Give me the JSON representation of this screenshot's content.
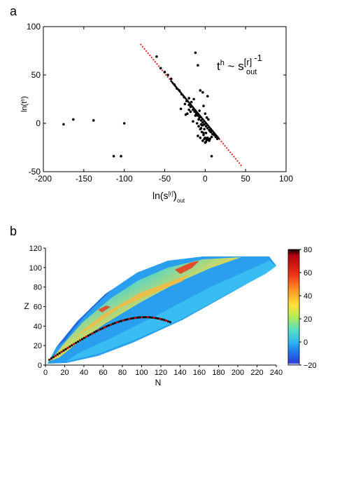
{
  "chart_data": [
    {
      "panel_label": "a",
      "type": "scatter",
      "xlabel": "ln(s",
      "xlabel_sup": "[r]",
      "xlabel_sub": "out",
      "xlabel_close": ")",
      "ylabel": "ln(t",
      "ylabel_sup": "h",
      "ylabel_close": ")",
      "xlim": [
        -200,
        100
      ],
      "ylim": [
        -50,
        100
      ],
      "xticks": [
        -200,
        -150,
        -100,
        -50,
        0,
        50,
        100
      ],
      "yticks": [
        -50,
        0,
        50,
        100
      ],
      "annotation": {
        "t": "t",
        "t_sup": "h",
        "tilde": " ~ s",
        "s_sup": "[r]",
        "s_sub": "out",
        "exp": "-1"
      },
      "fit_line": {
        "x": [
          -80,
          45
        ],
        "y": [
          82,
          -44
        ]
      },
      "series": [
        {
          "x": [
            -175,
            -163,
            -138,
            -100,
            -113,
            -104,
            -60,
            -55,
            -50,
            -46,
            -42,
            -38,
            -35,
            -32,
            -29,
            -26,
            -23,
            -20,
            -18,
            -15,
            -13,
            -11,
            -9,
            -7,
            -5,
            -3,
            -1,
            1,
            3,
            5,
            7,
            9,
            11,
            13,
            15,
            -12,
            -9,
            -6,
            -20,
            -17,
            -3,
            -2,
            0,
            2,
            4,
            6,
            8,
            -4,
            -1,
            1,
            3,
            5,
            -10,
            -8,
            -6,
            -4,
            -2,
            0,
            2,
            4,
            6,
            -15,
            -5,
            -25,
            -30,
            -22,
            -12,
            -8,
            -5,
            0,
            3,
            -14,
            -7,
            -2,
            -9,
            -6,
            -3,
            1,
            -1,
            0,
            2,
            -3,
            -20,
            -18,
            -24,
            5,
            8,
            3
          ],
          "y": [
            -1,
            4,
            3,
            0,
            -34,
            -34,
            69,
            57,
            53,
            50,
            46,
            40,
            36,
            34,
            30,
            27,
            23,
            19,
            17,
            14,
            12,
            10,
            8,
            6,
            3,
            1,
            -1,
            -3,
            -5,
            -7,
            -9,
            -11,
            -12,
            -14,
            -16,
            73,
            60,
            34,
            26,
            22,
            32,
            18,
            10,
            6,
            4,
            -8,
            -14,
            -2,
            -6,
            -10,
            -15,
            -17,
            0,
            -3,
            -6,
            -9,
            -12,
            -15,
            -16,
            -17,
            -16,
            2,
            -5,
            20,
            15,
            10,
            8,
            4,
            -1,
            -20,
            -16,
            25,
            13,
            -10,
            -13,
            -15,
            -18,
            -19,
            -16,
            -15,
            -17,
            -2,
            14,
            12,
            9,
            -18,
            -34,
            28
          ]
        }
      ]
    },
    {
      "panel_label": "b",
      "type": "heatmap",
      "xlabel": "N",
      "ylabel": "Z",
      "xlim": [
        0,
        240
      ],
      "ylim": [
        0,
        120
      ],
      "xticks": [
        0,
        20,
        40,
        60,
        80,
        100,
        120,
        140,
        160,
        180,
        200,
        220,
        240
      ],
      "yticks": [
        0,
        20,
        40,
        60,
        80,
        100,
        120
      ],
      "colorbar": {
        "range": [
          -20,
          80
        ],
        "ticks": [
          -20,
          0,
          20,
          40,
          60,
          80
        ],
        "colors": [
          "#ffffff",
          "#2a3fd6",
          "#1f7df0",
          "#2fb8f0",
          "#52e0c8",
          "#b6ec52",
          "#ffe23a",
          "#ff9b23",
          "#f03418",
          "#b0000c",
          "#000000"
        ]
      },
      "drip_line_cells": 60
    }
  ]
}
